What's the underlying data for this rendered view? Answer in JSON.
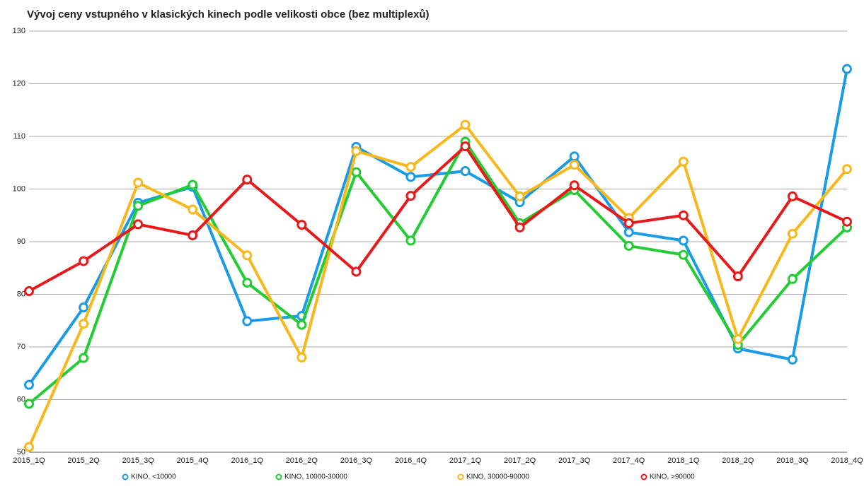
{
  "chart_data": {
    "type": "line",
    "title": "Vývoj ceny vstupného v klasických kinech podle velikosti obce (bez multiplexů)",
    "categories": [
      "2015_1Q",
      "2015_2Q",
      "2015_3Q",
      "2015_4Q",
      "2016_1Q",
      "2016_2Q",
      "2016_3Q",
      "2016_4Q",
      "2017_1Q",
      "2017_2Q",
      "2017_3Q",
      "2017_4Q",
      "2018_1Q",
      "2018_2Q",
      "2018_3Q",
      "2018_4Q"
    ],
    "series": [
      {
        "name": "KINO, <10000",
        "color": "#1a9be8",
        "values": [
          62.8,
          77.5,
          97.4,
          100.4,
          74.9,
          75.9,
          108,
          102.3,
          103.4,
          97.5,
          106.2,
          91.8,
          90.2,
          69.7,
          67.6,
          122.8
        ]
      },
      {
        "name": "KINO, 10000-30000",
        "color": "#22cc33",
        "values": [
          59.2,
          67.9,
          96.8,
          100.8,
          82.2,
          74.2,
          103.2,
          90.2,
          109,
          93.5,
          99.8,
          89.2,
          87.5,
          70.4,
          82.9,
          92.7
        ]
      },
      {
        "name": "KINO, 30000-90000",
        "color": "#f8b81c",
        "values": [
          51,
          74.4,
          101.2,
          96.1,
          87.4,
          68,
          107.2,
          104.2,
          112.2,
          98.6,
          104.6,
          94.5,
          105.2,
          71.5,
          91.5,
          103.8
        ]
      },
      {
        "name": "KINO, >90000",
        "color": "#e8191a",
        "values": [
          80.6,
          86.3,
          93.3,
          91.2,
          101.8,
          93.2,
          84.3,
          98.7,
          108.1,
          92.7,
          100.7,
          93.5,
          95,
          83.4,
          98.6,
          93.8
        ]
      }
    ],
    "ylim": [
      50,
      130
    ],
    "yticks": [
      50,
      60,
      70,
      80,
      90,
      100,
      110,
      120,
      130
    ],
    "grid": true,
    "legend": "bottom"
  }
}
